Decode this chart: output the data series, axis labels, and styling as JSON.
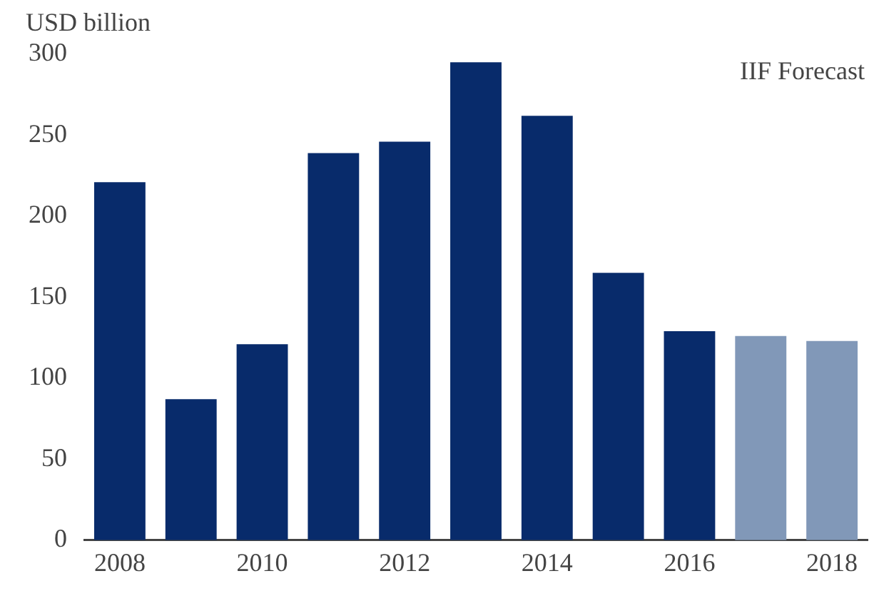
{
  "chart_data": {
    "type": "bar",
    "ylabel": "USD billion",
    "annotations": [
      "IIF Forecast"
    ],
    "categories": [
      "2008",
      null,
      "2010",
      null,
      "2012",
      null,
      "2014",
      null,
      "2016",
      null,
      "2018"
    ],
    "values": [
      221,
      87,
      121,
      239,
      246,
      295,
      262,
      165,
      129,
      126,
      123
    ],
    "colors": [
      "#082b6b",
      "#082b6b",
      "#082b6b",
      "#082b6b",
      "#082b6b",
      "#082b6b",
      "#082b6b",
      "#082b6b",
      "#082b6b",
      "#8198b8",
      "#8198b8"
    ],
    "ylim": [
      0,
      300
    ],
    "yticks": [
      0,
      50,
      100,
      150,
      200,
      250,
      300
    ],
    "grid": false,
    "legend": false
  }
}
